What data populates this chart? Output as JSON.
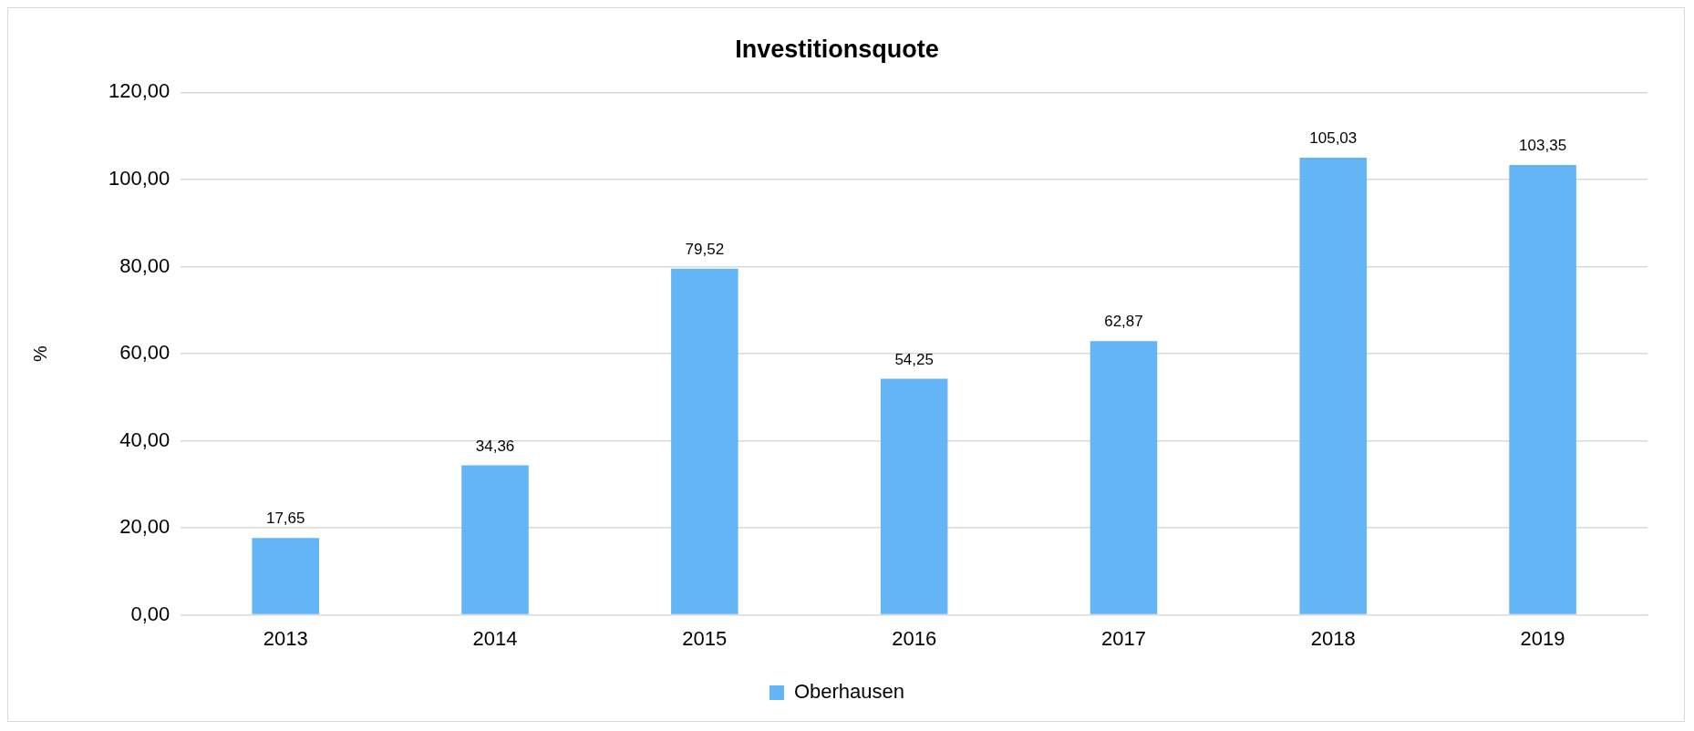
{
  "chart_data": {
    "type": "bar",
    "title": "Investitionsquote",
    "ylabel": "%",
    "categories": [
      "2013",
      "2014",
      "2015",
      "2016",
      "2017",
      "2018",
      "2019"
    ],
    "series": [
      {
        "name": "Oberhausen",
        "color": "#63b5f5",
        "values": [
          17.65,
          34.36,
          79.52,
          54.25,
          62.87,
          105.03,
          103.35
        ],
        "value_labels": [
          "17,65",
          "34,36",
          "79,52",
          "54,25",
          "62,87",
          "105,03",
          "103,35"
        ]
      }
    ],
    "ylim": [
      0,
      120
    ],
    "yticks": [
      {
        "value": 0,
        "label": "0,00"
      },
      {
        "value": 20,
        "label": "20,00"
      },
      {
        "value": 40,
        "label": "40,00"
      },
      {
        "value": 60,
        "label": "60,00"
      },
      {
        "value": 80,
        "label": "80,00"
      },
      {
        "value": 100,
        "label": "100,00"
      },
      {
        "value": 120,
        "label": "120,00"
      }
    ],
    "grid": "y",
    "legend": "bottom"
  }
}
